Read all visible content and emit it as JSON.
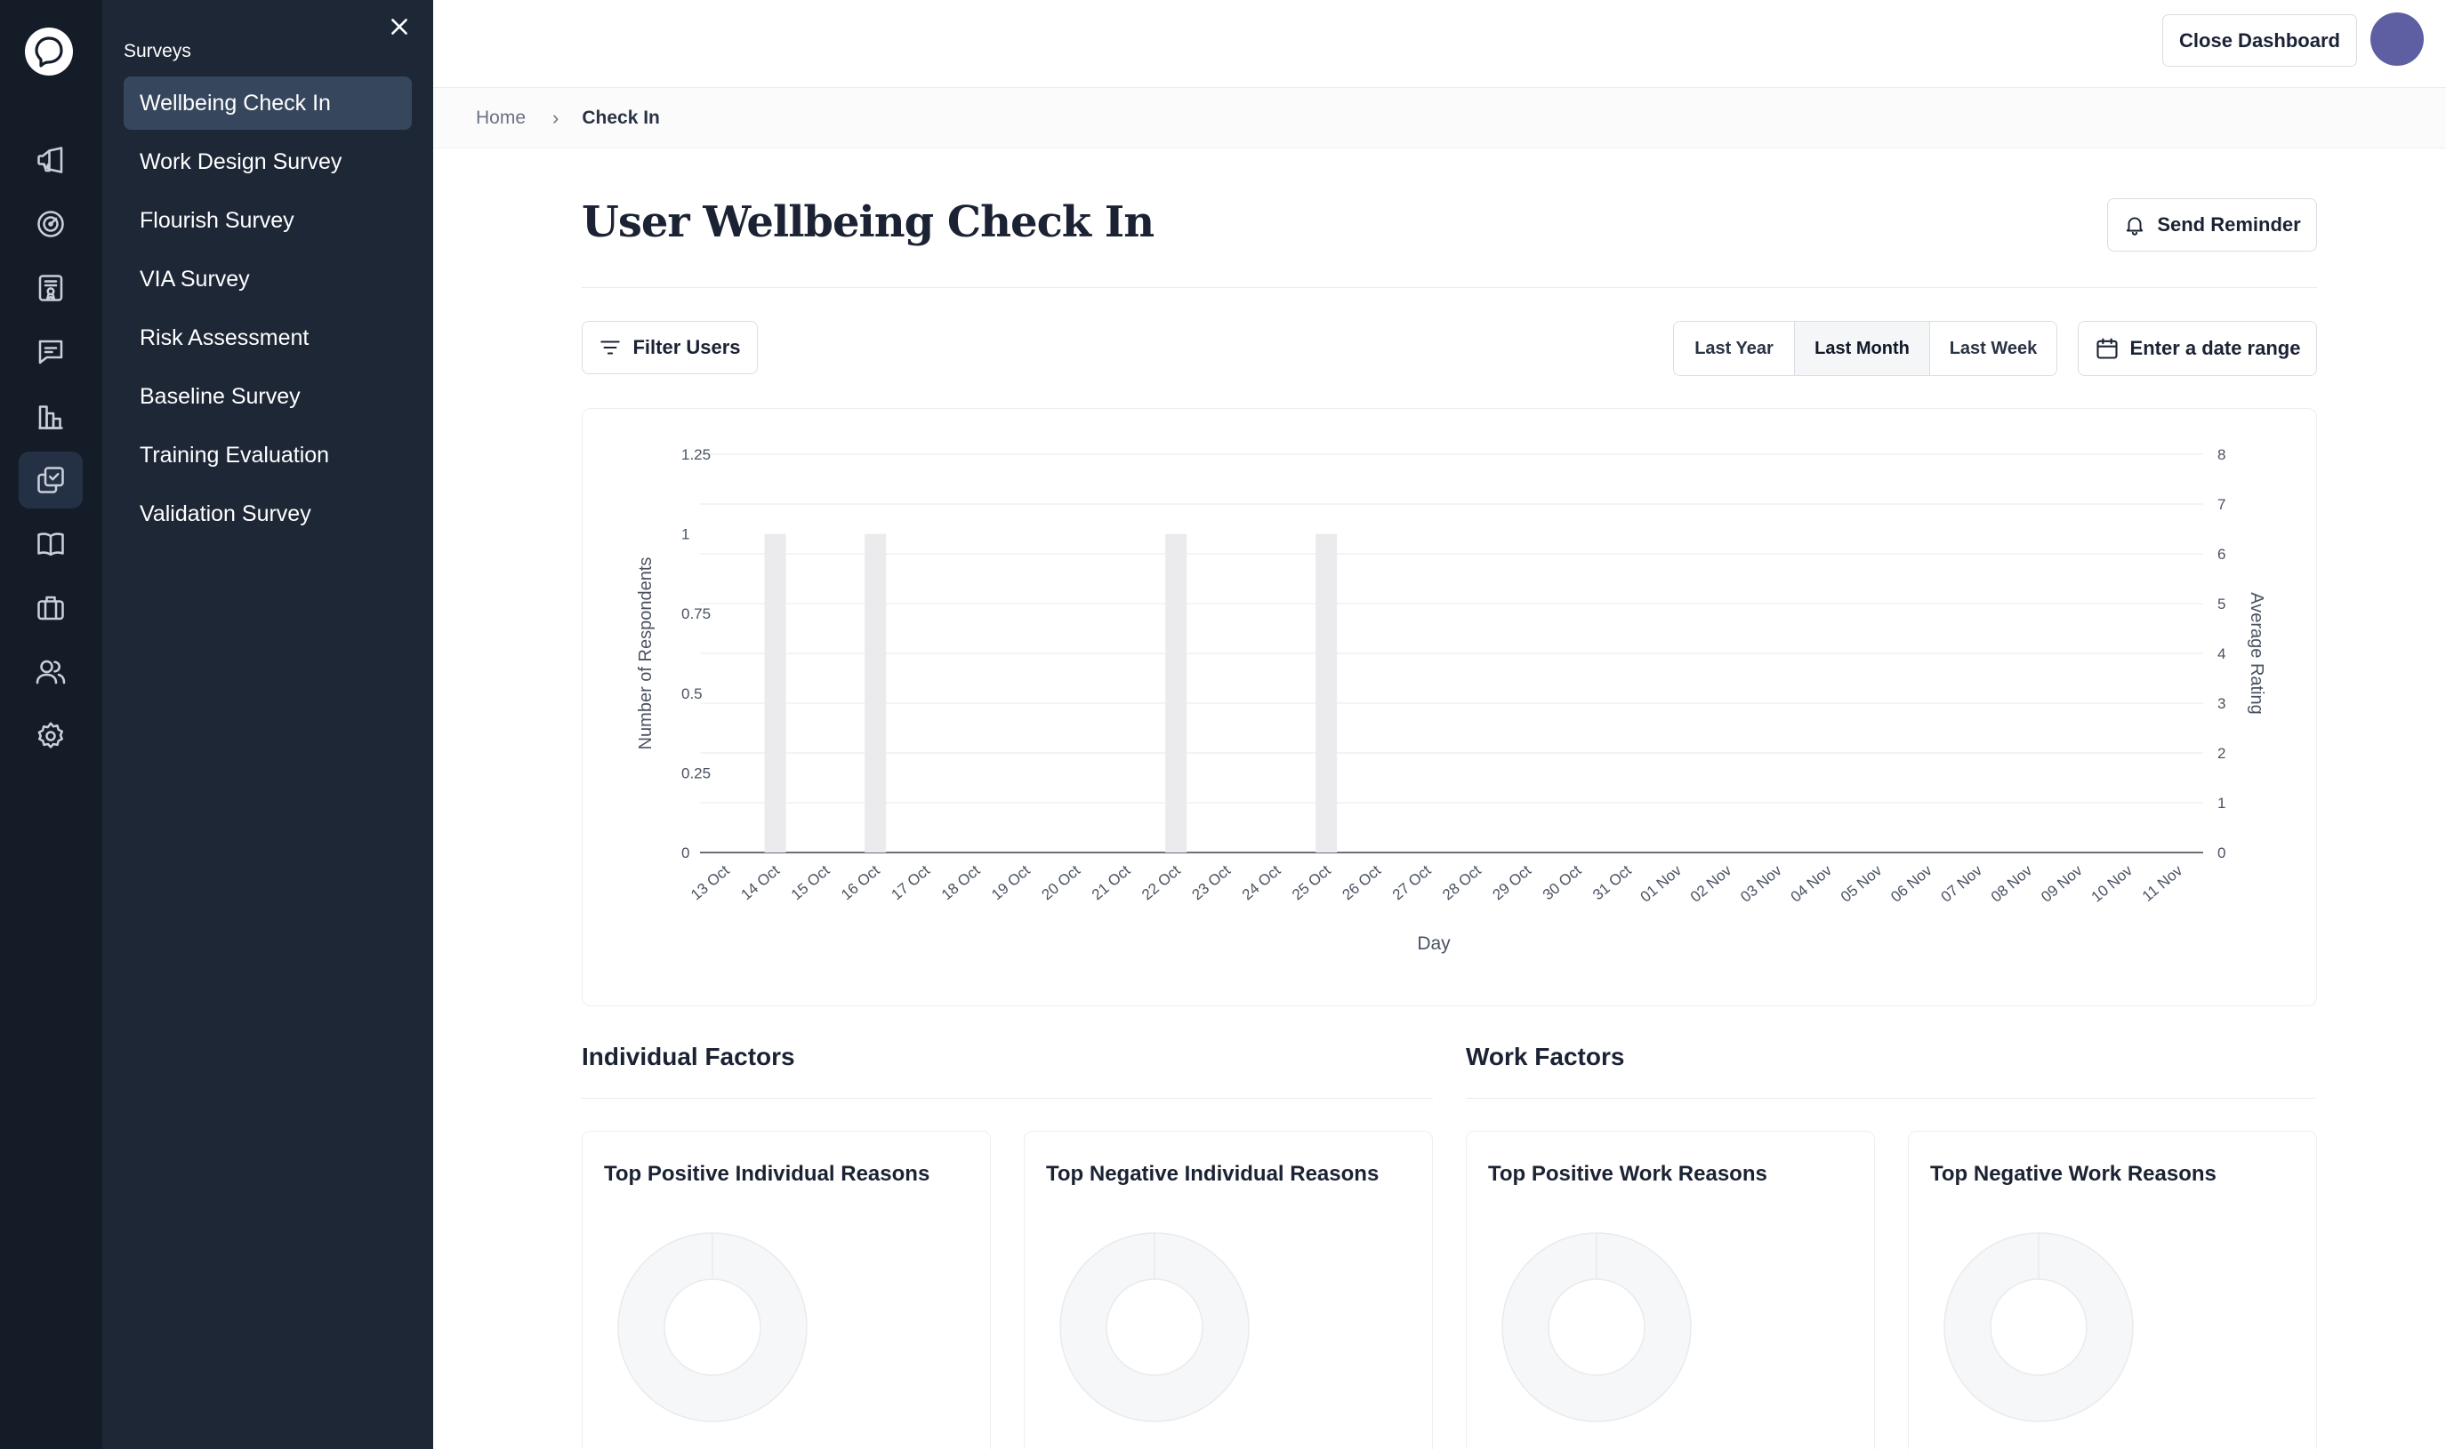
{
  "rail": {
    "items": [
      {
        "icon": "megaphone-icon"
      },
      {
        "icon": "gauge-icon"
      },
      {
        "icon": "certificate-icon"
      },
      {
        "icon": "chat-icon"
      },
      {
        "icon": "bar-chart-icon"
      },
      {
        "icon": "surveys-icon",
        "active": true
      },
      {
        "icon": "book-icon"
      },
      {
        "icon": "briefcase-icon"
      },
      {
        "icon": "users-icon"
      },
      {
        "icon": "settings-icon"
      }
    ]
  },
  "subnav": {
    "title": "Surveys",
    "items": [
      {
        "label": "Wellbeing Check In",
        "active": true
      },
      {
        "label": "Work Design Survey"
      },
      {
        "label": "Flourish Survey"
      },
      {
        "label": "VIA Survey"
      },
      {
        "label": "Risk Assessment"
      },
      {
        "label": "Baseline Survey"
      },
      {
        "label": "Training Evaluation"
      },
      {
        "label": "Validation Survey"
      }
    ]
  },
  "topbar": {
    "close_label": "Close Dashboard"
  },
  "breadcrumb": {
    "home": "Home",
    "separator": "›",
    "current": "Check In"
  },
  "page": {
    "title": "User Wellbeing Check In",
    "send_reminder": "Send Reminder",
    "filter_users": "Filter Users",
    "ranges": [
      "Last Year",
      "Last Month",
      "Last Week"
    ],
    "selected_range": "Last Month",
    "date_range": "Enter a date range"
  },
  "chart_data": {
    "type": "bar",
    "xlabel": "Day",
    "ylabel": "Number of Respondents",
    "y2label": "Average Rating",
    "ylim": [
      0,
      1.25
    ],
    "y2lim": [
      0,
      8
    ],
    "yticks": [
      "1.25",
      "1",
      "0.75",
      "0.5",
      "0.25",
      "0"
    ],
    "y2ticks": [
      "8",
      "7",
      "6",
      "5",
      "4",
      "3",
      "2",
      "1",
      "0"
    ],
    "grid": true,
    "categories": [
      "13 Oct",
      "14 Oct",
      "15 Oct",
      "16 Oct",
      "17 Oct",
      "18 Oct",
      "19 Oct",
      "20 Oct",
      "21 Oct",
      "22 Oct",
      "23 Oct",
      "24 Oct",
      "25 Oct",
      "26 Oct",
      "27 Oct",
      "28 Oct",
      "29 Oct",
      "30 Oct",
      "31 Oct",
      "01 Nov",
      "02 Nov",
      "03 Nov",
      "04 Nov",
      "05 Nov",
      "06 Nov",
      "07 Nov",
      "08 Nov",
      "09 Nov",
      "10 Nov",
      "11 Nov"
    ],
    "values": [
      0,
      1,
      0,
      1,
      0,
      0,
      0,
      0,
      0,
      1,
      0,
      0,
      1,
      0,
      0,
      0,
      0,
      0,
      0,
      0,
      0,
      0,
      0,
      0,
      0,
      0,
      0,
      0,
      0,
      0
    ],
    "bar_color": "#ebebee"
  },
  "sections": [
    {
      "title": "Individual Factors"
    },
    {
      "title": "Work Factors"
    }
  ],
  "reasons": [
    {
      "title": "Top Positive Individual Reasons"
    },
    {
      "title": "Top Negative Individual Reasons"
    },
    {
      "title": "Top Positive Work Reasons"
    },
    {
      "title": "Top Negative Work Reasons"
    }
  ],
  "colors": {
    "rail_bg": "#141c28",
    "subnav_bg": "#1d2736",
    "subnav_active": "#36465c",
    "avatar": "#5e5fa3",
    "donut": "#f6f7f8"
  }
}
